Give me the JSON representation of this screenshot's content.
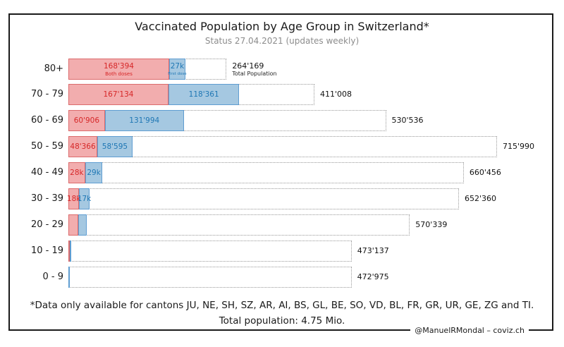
{
  "title": "Vaccinated Population by Age Group in Switzerland*",
  "subtitle": "Status 27.04.2021 (updates weekly)",
  "footer": {
    "note": "*Data only available for cantons JU, NE, SH, SZ, AR, AI, BS, GL, BE, SO, VD, BL, FR, GR, UR, GE, ZG and TI.",
    "total_population": "Total population: 4.75 Mio.",
    "credit": "@ManuelRMondal – coviz.ch"
  },
  "legend": {
    "both_doses": "Both doses",
    "first_dose": "First dose",
    "total_population": "Total Population"
  },
  "colors": {
    "both_doses_fill": "#F2ADAE",
    "both_doses_edge": "#DB6B6C",
    "both_doses_text": "#D62728",
    "first_dose_fill": "#A5C8E1",
    "first_dose_edge": "#5F9DD1",
    "first_dose_text": "#1F77B4",
    "total_edge": "#999999"
  },
  "chart_data": {
    "type": "bar",
    "orientation": "horizontal",
    "categories": [
      "80+",
      "70 - 79",
      "60 - 69",
      "50 - 59",
      "40 - 49",
      "30 - 39",
      "20 - 29",
      "10 - 19",
      "0 - 9"
    ],
    "series": [
      {
        "name": "Both doses",
        "values": [
          168394,
          167134,
          60906,
          48366,
          28000,
          18000,
          16000,
          2500,
          0
        ],
        "labels": [
          "168'394",
          "167'134",
          "60'906",
          "48'366",
          "28k",
          "18k",
          "",
          "",
          ""
        ]
      },
      {
        "name": "First dose",
        "values": [
          27000,
          118361,
          131994,
          58595,
          29000,
          17000,
          15000,
          2500,
          500
        ],
        "labels": [
          "27k",
          "118'361",
          "131'994",
          "58'595",
          "29k",
          "17k",
          "",
          "",
          ""
        ]
      },
      {
        "name": "Total Population",
        "values": [
          264169,
          411008,
          530536,
          715990,
          660456,
          652360,
          570339,
          473137,
          472975
        ],
        "labels": [
          "264'169",
          "411'008",
          "530'536",
          "715'990",
          "660'456",
          "652'360",
          "570'339",
          "473'137",
          "472'975"
        ]
      }
    ],
    "xlim": [
      0,
      716000
    ],
    "legend_position": "inline-first-bar",
    "grid": false
  }
}
